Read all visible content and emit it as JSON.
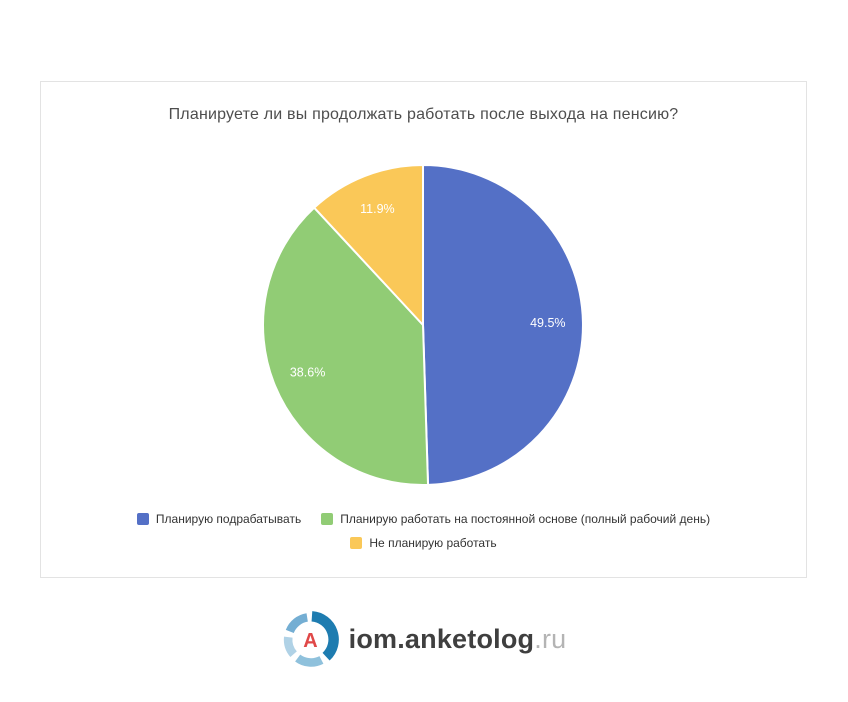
{
  "chart_data": {
    "type": "pie",
    "title": "Планируете ли вы продолжать работать после выхода на пенсию?",
    "slices": [
      {
        "label": "Планирую подрабатывать",
        "value": 49.5,
        "display": "49.5%",
        "color": "#5470c6"
      },
      {
        "label": "Планирую работать на постоянной основе (полный рабочий день)",
        "value": 38.6,
        "display": "38.6%",
        "color": "#91cc75"
      },
      {
        "label": "Не планирую работать",
        "value": 11.9,
        "display": "11.9%",
        "color": "#fac858"
      }
    ],
    "start_angle_deg": 0,
    "direction": "clockwise",
    "label_position": "inside",
    "label_color": "#ffffff",
    "slice_border_color": "#ffffff",
    "legend_position": "bottom",
    "legend_rows": [
      [
        0,
        1
      ],
      [
        2
      ]
    ]
  },
  "footer": {
    "logo_main": "iom.anketolog",
    "logo_suffix": ".ru",
    "logo_letter": "A"
  }
}
